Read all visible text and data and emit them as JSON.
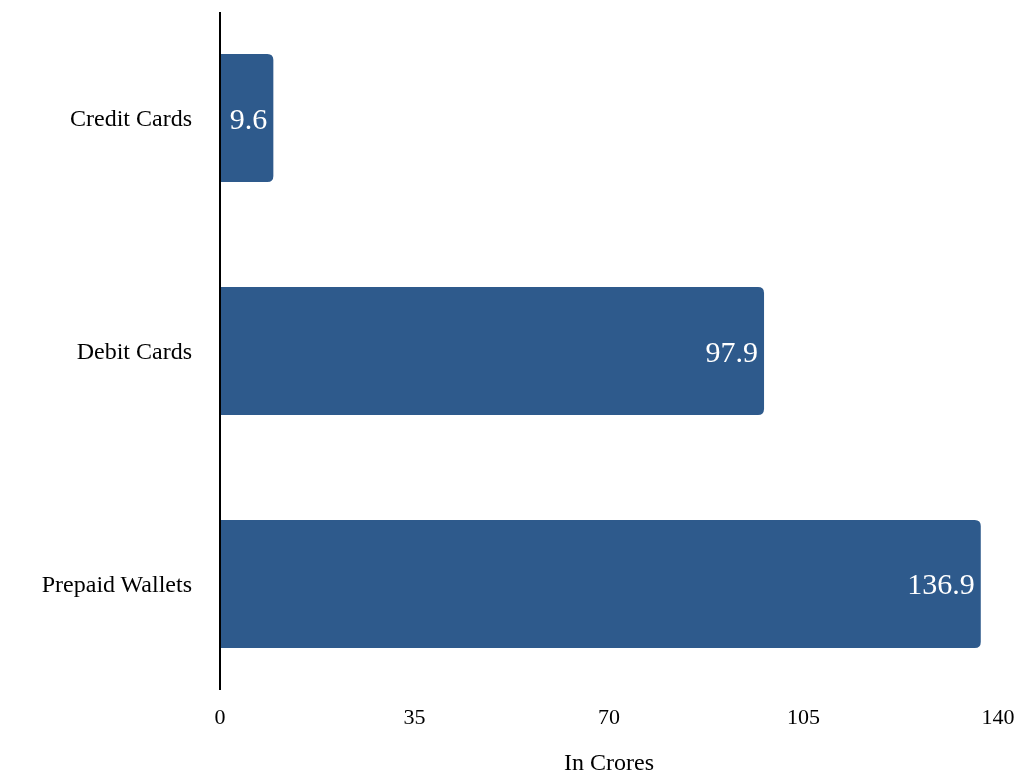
{
  "chart_data": {
    "type": "bar",
    "orientation": "horizontal",
    "xlabel": "In Crores",
    "categories": [
      "Credit Cards",
      "Debit Cards",
      "Prepaid Wallets"
    ],
    "values": [
      9.6,
      97.9,
      136.9
    ],
    "color": "#2e5a8c",
    "xlim": [
      0,
      140
    ],
    "xticks": [
      0,
      35,
      70,
      105,
      140
    ],
    "data_labels": true,
    "grid": false
  }
}
